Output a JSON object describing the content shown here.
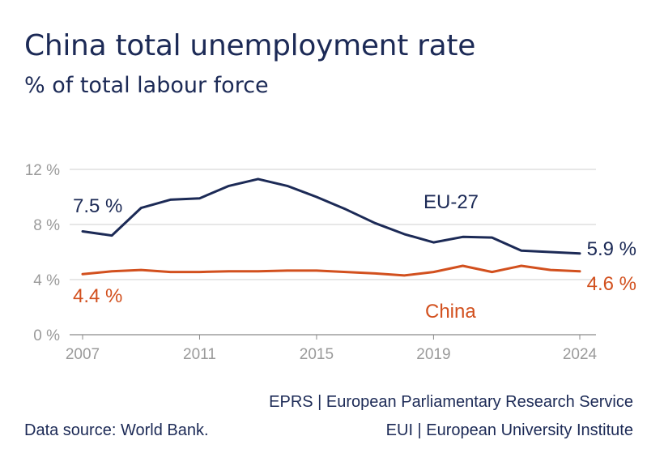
{
  "chart_data": {
    "type": "line",
    "title": "China total unemployment rate",
    "subtitle": "% of total labour force",
    "x": [
      2007,
      2008,
      2009,
      2010,
      2011,
      2012,
      2013,
      2014,
      2015,
      2016,
      2017,
      2018,
      2019,
      2020,
      2021,
      2022,
      2023,
      2024
    ],
    "series": [
      {
        "name": "EU-27",
        "label": "EU-27",
        "color": "#1c2a56",
        "values": [
          7.5,
          7.2,
          9.2,
          9.8,
          9.9,
          10.8,
          11.3,
          10.8,
          10.0,
          9.1,
          8.1,
          7.3,
          6.7,
          7.1,
          7.05,
          6.1,
          6.0,
          5.9
        ],
        "start_label": "7.5 %",
        "end_label": "5.9 %"
      },
      {
        "name": "China",
        "label": "China",
        "color": "#d2501e",
        "values": [
          4.4,
          4.6,
          4.7,
          4.55,
          4.55,
          4.6,
          4.6,
          4.65,
          4.65,
          4.55,
          4.45,
          4.3,
          4.55,
          5.0,
          4.55,
          5.0,
          4.7,
          4.6
        ],
        "start_label": "4.4 %",
        "end_label": "4.6 %"
      }
    ],
    "ylim": [
      0,
      12
    ],
    "yticks": [
      0,
      4,
      8,
      12
    ],
    "ytick_labels": [
      "0 %",
      "4 %",
      "8 %",
      "12 %"
    ],
    "xticks": [
      2007,
      2011,
      2015,
      2019,
      2024
    ],
    "xtick_labels": [
      "2007",
      "2011",
      "2015",
      "2019",
      "2024"
    ],
    "grid": true,
    "legend": "inline labels"
  },
  "footer": {
    "source": "Data source: World Bank.",
    "credit_line1": "EPRS | European Parliamentary Research Service",
    "credit_line2": "EUI | European University Institute"
  }
}
